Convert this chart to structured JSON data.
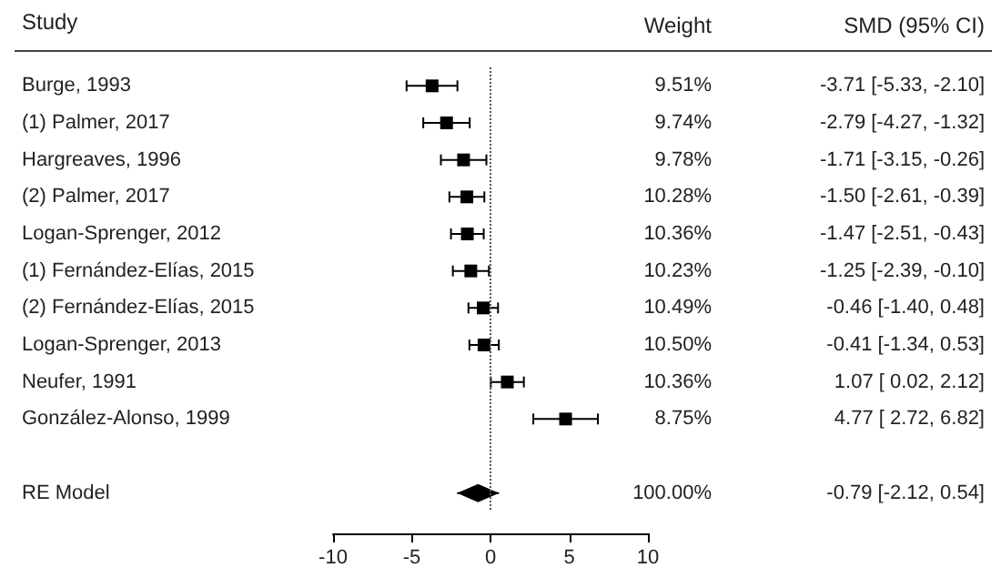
{
  "chart_data": {
    "type": "scatter",
    "orientation": "horizontal",
    "ylabel": "Study",
    "annotations": [
      "Weight",
      "SMD (95% CI)"
    ],
    "categories": [
      "Burge, 1993",
      "(1) Palmer, 2017",
      "Hargreaves, 1996",
      "(2) Palmer, 2017",
      "Logan-Sprenger, 2012",
      "(1) Fernández-Elías, 2015",
      "(2) Fernández-Elías, 2015",
      "Logan-Sprenger, 2013",
      "Neufer, 1991",
      "González-Alonso, 1999",
      null,
      "RE Model"
    ],
    "xlim": [
      -10,
      10
    ],
    "xticks": [
      -10,
      -5,
      0,
      5,
      10
    ],
    "grid": false,
    "ref_lines": [
      {
        "axis": "x",
        "value": 0,
        "line_style": "dotted",
        "color": "#555555"
      }
    ],
    "series": [
      {
        "color": "#000000",
        "marker": "square",
        "values": [
          -3.71,
          -2.79,
          -1.71,
          -1.5,
          -1.47,
          -1.25,
          -0.46,
          -0.41,
          1.07,
          4.77,
          null,
          null
        ],
        "errors": [
          [
            -5.33,
            -2.1
          ],
          [
            -4.27,
            -1.32
          ],
          [
            -3.15,
            -0.26
          ],
          [
            -2.61,
            -0.39
          ],
          [
            -2.51,
            -0.43
          ],
          [
            -2.39,
            -0.1
          ],
          [
            -1.4,
            0.48
          ],
          [
            -1.34,
            0.53
          ],
          [
            0.02,
            2.12
          ],
          [
            2.72,
            6.82
          ],
          null,
          null
        ],
        "value_labels": [
          "9.51%\t-3.71 [-5.33, -2.10]",
          "9.74%\t-2.79 [-4.27, -1.32]",
          "9.78%\t-1.71 [-3.15, -0.26]",
          "10.28%\t-1.50 [-2.61, -0.39]",
          "10.36%\t-1.47 [-2.51, -0.43]",
          "10.23%\t-1.25 [-2.39, -0.10]",
          "10.49%\t-0.46 [-1.40, 0.48]",
          "10.50%\t-0.41 [-1.34, 0.53]",
          "10.36%\t1.07 [ 0.02, 2.12]",
          "8.75%\t4.77 [ 2.72, 6.82]",
          null,
          null
        ]
      },
      {
        "color": "#000000",
        "marker": "diamond",
        "values": [
          null,
          null,
          null,
          null,
          null,
          null,
          null,
          null,
          null,
          null,
          null,
          -0.79
        ],
        "errors": [
          null,
          null,
          null,
          null,
          null,
          null,
          null,
          null,
          null,
          null,
          null,
          [
            -2.12,
            0.54
          ]
        ],
        "value_labels": [
          null,
          null,
          null,
          null,
          null,
          null,
          null,
          null,
          null,
          null,
          null,
          "100.00%\t-0.79 [-2.12, 0.54]"
        ]
      }
    ]
  }
}
